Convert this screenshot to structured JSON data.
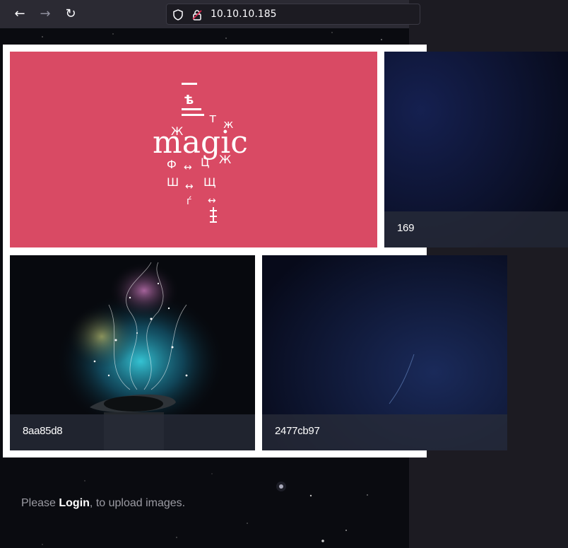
{
  "browser": {
    "url": "10.10.10.185",
    "icons": [
      "back-arrow-icon",
      "forward-arrow-icon",
      "reload-icon",
      "shield-icon",
      "insecure-lock-icon"
    ]
  },
  "gallery": {
    "tiles": [
      {
        "caption": "",
        "image": "magic-text-illustration"
      },
      {
        "caption": "169",
        "image": "dark-blue-space"
      },
      {
        "caption": "8aa85d8",
        "image": "magic-hat-sparkles"
      },
      {
        "caption": "2477cb97",
        "image": "dark-blue-space"
      }
    ]
  },
  "footer": {
    "prefix": "Please ",
    "login_label": "Login",
    "suffix": ", to upload images."
  },
  "colors": {
    "accent_tile": "#d94a64",
    "page_bg": "#0a0b10",
    "toolbar_bg": "#2b2a33"
  }
}
